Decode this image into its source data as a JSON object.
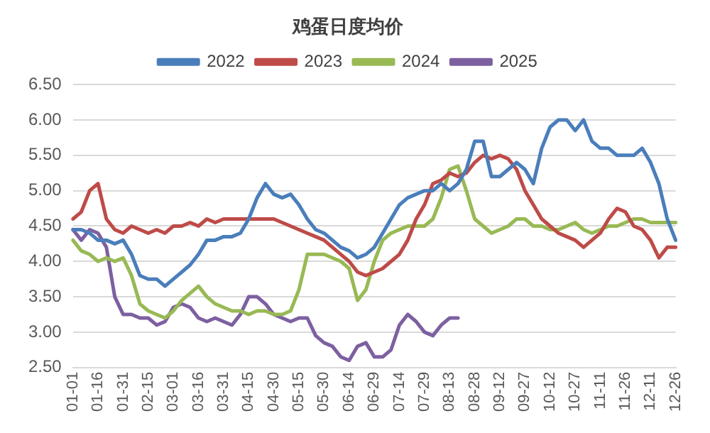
{
  "chart_data": {
    "type": "line",
    "title": "鸡蛋日度均价",
    "categories": [
      "01-01",
      null,
      null,
      "01-16",
      null,
      null,
      "01-31",
      null,
      null,
      "02-15",
      null,
      null,
      "03-01",
      null,
      null,
      "03-16",
      null,
      null,
      "03-31",
      null,
      null,
      "04-15",
      null,
      null,
      "04-30",
      null,
      null,
      "05-15",
      null,
      null,
      "05-30",
      null,
      null,
      "06-14",
      null,
      null,
      "06-29",
      null,
      null,
      "07-14",
      null,
      null,
      "07-29",
      null,
      null,
      "08-13",
      null,
      null,
      "08-28",
      null,
      null,
      "09-12",
      null,
      null,
      "09-27",
      null,
      null,
      "10-12",
      null,
      null,
      "10-27",
      null,
      null,
      "11-11",
      null,
      null,
      "11-26",
      null,
      null,
      "12-11",
      null,
      null,
      "12-26"
    ],
    "series": [
      {
        "name": "2022",
        "color": "#4a7ebb",
        "values": [
          4.45,
          4.45,
          4.4,
          4.3,
          4.3,
          4.25,
          4.3,
          4.1,
          3.8,
          3.75,
          3.75,
          3.65,
          3.75,
          3.85,
          3.95,
          4.1,
          4.3,
          4.3,
          4.35,
          4.35,
          4.4,
          4.6,
          4.9,
          5.1,
          4.95,
          4.9,
          4.95,
          4.8,
          4.6,
          4.45,
          4.4,
          4.3,
          4.2,
          4.15,
          4.05,
          4.1,
          4.2,
          4.4,
          4.6,
          4.8,
          4.9,
          4.95,
          5.0,
          5.0,
          5.1,
          5.0,
          5.1,
          5.3,
          5.7,
          5.7,
          5.2,
          5.2,
          5.3,
          5.4,
          5.3,
          5.1,
          5.6,
          5.9,
          6.0,
          6.0,
          5.85,
          6.0,
          5.7,
          5.6,
          5.6,
          5.5,
          5.5,
          5.5,
          5.6,
          5.4,
          5.1,
          4.6,
          4.3
        ]
      },
      {
        "name": "2023",
        "color": "#be4b48",
        "values": [
          4.6,
          4.7,
          5.0,
          5.1,
          4.6,
          4.45,
          4.4,
          4.5,
          4.45,
          4.4,
          4.45,
          4.4,
          4.5,
          4.5,
          4.55,
          4.5,
          4.6,
          4.55,
          4.6,
          4.6,
          4.6,
          4.6,
          4.6,
          4.6,
          4.6,
          4.55,
          4.5,
          4.45,
          4.4,
          4.35,
          4.3,
          4.2,
          4.1,
          4.0,
          3.85,
          3.8,
          3.85,
          3.9,
          4.0,
          4.1,
          4.3,
          4.6,
          4.8,
          5.1,
          5.15,
          5.25,
          5.2,
          5.25,
          5.4,
          5.5,
          5.45,
          5.5,
          5.45,
          5.3,
          5.0,
          4.8,
          4.6,
          4.5,
          4.4,
          4.35,
          4.3,
          4.2,
          4.3,
          4.4,
          4.6,
          4.75,
          4.7,
          4.5,
          4.45,
          4.3,
          4.05,
          4.2,
          4.2
        ]
      },
      {
        "name": "2024",
        "color": "#98b954",
        "values": [
          4.3,
          4.15,
          4.1,
          4.0,
          4.05,
          4.0,
          4.05,
          3.8,
          3.4,
          3.3,
          3.25,
          3.2,
          3.3,
          3.45,
          3.55,
          3.65,
          3.5,
          3.4,
          3.35,
          3.3,
          3.3,
          3.25,
          3.3,
          3.3,
          3.25,
          3.25,
          3.3,
          3.6,
          4.1,
          4.1,
          4.1,
          4.05,
          4.0,
          3.9,
          3.45,
          3.6,
          4.0,
          4.3,
          4.4,
          4.45,
          4.5,
          4.5,
          4.5,
          4.6,
          4.9,
          5.3,
          5.35,
          5.0,
          4.6,
          4.5,
          4.4,
          4.45,
          4.5,
          4.6,
          4.6,
          4.5,
          4.5,
          4.45,
          4.45,
          4.5,
          4.55,
          4.45,
          4.4,
          4.45,
          4.5,
          4.5,
          4.55,
          4.6,
          4.6,
          4.55,
          4.55,
          4.55,
          4.55
        ]
      },
      {
        "name": "2025",
        "color": "#7d60a0",
        "values": [
          4.45,
          4.3,
          4.45,
          4.4,
          4.2,
          3.5,
          3.25,
          3.25,
          3.2,
          3.2,
          3.1,
          3.15,
          3.35,
          3.4,
          3.35,
          3.2,
          3.15,
          3.2,
          3.15,
          3.1,
          3.25,
          3.5,
          3.5,
          3.4,
          3.25,
          3.2,
          3.15,
          3.2,
          3.2,
          2.95,
          2.85,
          2.8,
          2.65,
          2.6,
          2.8,
          2.85,
          2.65,
          2.65,
          2.75,
          3.1,
          3.25,
          3.15,
          3.0,
          2.95,
          3.1,
          3.2,
          3.2,
          null,
          null,
          null,
          null,
          null,
          null,
          null,
          null,
          null,
          null,
          null,
          null,
          null,
          null,
          null,
          null,
          null,
          null,
          null,
          null,
          null,
          null,
          null,
          null,
          null,
          null
        ]
      }
    ],
    "ylim": [
      2.5,
      6.5
    ],
    "yticks": [
      {
        "value": 2.5,
        "label": "2.50"
      },
      {
        "value": 3,
        "label": "3.00"
      },
      {
        "value": 3.5,
        "label": "3.50"
      },
      {
        "value": 4,
        "label": "4.00"
      },
      {
        "value": 4.5,
        "label": "4.50"
      },
      {
        "value": 5,
        "label": "5.00"
      },
      {
        "value": 5.5,
        "label": "5.50"
      },
      {
        "value": 6,
        "label": "6.00"
      },
      {
        "value": 6.5,
        "label": "6.50"
      }
    ],
    "grid": "y",
    "legend": "top",
    "marker": "none",
    "line_style": "solid"
  }
}
